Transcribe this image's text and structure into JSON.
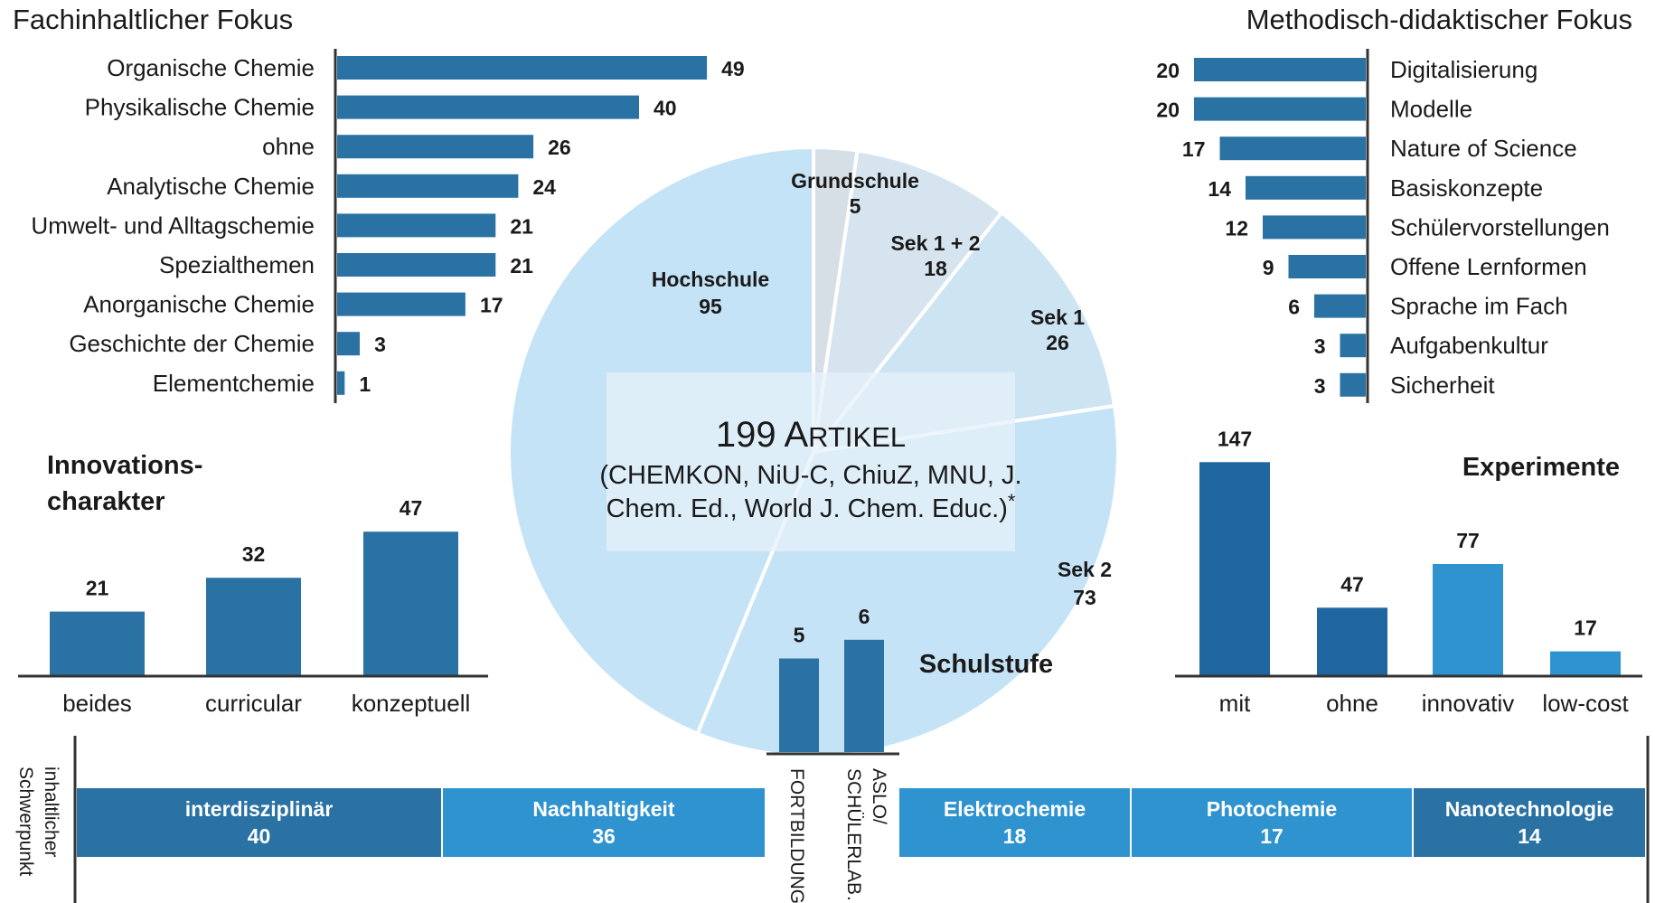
{
  "colors": {
    "bar": "#2a72a4",
    "bar_dark": "#1f66a0",
    "bar_light": "#2f93d0",
    "pie_main": "#c5e3f6",
    "pie_sek1": "#cde4f3",
    "pie_sek12": "#d5e4ee",
    "pie_grund": "#d7dfe6",
    "center_box": "#e6f2fa",
    "axis": "#333333"
  },
  "center": {
    "line1": "199 Artikel",
    "line2": "(CHEMKON, NiU-C, ChiuZ, MNU, J.",
    "line3": "Chem. Ed., World J. Chem. Educ.)",
    "note_mark": "*"
  },
  "bottom_axis_label": [
    "inhaltlicher",
    "Schwerpunkt"
  ],
  "chart_data": [
    {
      "id": "fachinhaltlich",
      "type": "bar",
      "orientation": "horizontal",
      "title": "Fachinhaltlicher Fokus",
      "categories": [
        "Organische Chemie",
        "Physikalische Chemie",
        "ohne",
        "Analytische Chemie",
        "Umwelt- und Alltagschemie",
        "Spezialthemen",
        "Anorganische Chemie",
        "Geschichte der Chemie",
        "Elementchemie"
      ],
      "values": [
        49,
        40,
        26,
        24,
        21,
        21,
        17,
        3,
        1
      ]
    },
    {
      "id": "methodisch",
      "type": "bar",
      "orientation": "horizontal",
      "title": "Methodisch-didaktischer Fokus",
      "categories": [
        "Digitalisierung",
        "Modelle",
        "Nature of Science",
        "Basiskonzepte",
        "Schülervorstellungen",
        "Offene Lernformen",
        "Sprache im Fach",
        "Aufgabenkultur",
        "Sicherheit"
      ],
      "values": [
        20,
        20,
        17,
        14,
        12,
        9,
        6,
        3,
        3
      ]
    },
    {
      "id": "innovation",
      "type": "bar",
      "title": [
        "Innovations-",
        "charakter"
      ],
      "categories": [
        "beides",
        "curricular",
        "konzeptuell"
      ],
      "values": [
        21,
        32,
        47
      ]
    },
    {
      "id": "experimente",
      "type": "bar",
      "title": "Experimente",
      "categories": [
        "mit",
        "ohne",
        "innovativ",
        "low-cost"
      ],
      "values": [
        147,
        47,
        77,
        17
      ]
    },
    {
      "id": "schulstufe",
      "type": "pie",
      "title": "Schulstufe",
      "labels": [
        "Grundschule",
        "Sek 1 + 2",
        "Sek 1",
        "Sek 2",
        "Hochschule"
      ],
      "values": [
        5,
        18,
        26,
        73,
        95
      ]
    },
    {
      "id": "fortbildung",
      "type": "bar",
      "categories": [
        "FORTBILDUNG",
        [
          "ASLO/",
          "SCHÜLERLAB…"
        ]
      ],
      "values": [
        5,
        6
      ]
    },
    {
      "id": "schwerpunkt",
      "type": "bar",
      "stacked": true,
      "categories": [
        "interdisziplinär",
        "Nachhaltigkeit",
        "Elektrochemie",
        "Photochemie",
        "Nanotechnologie"
      ],
      "values": [
        40,
        36,
        18,
        17,
        14
      ]
    }
  ]
}
